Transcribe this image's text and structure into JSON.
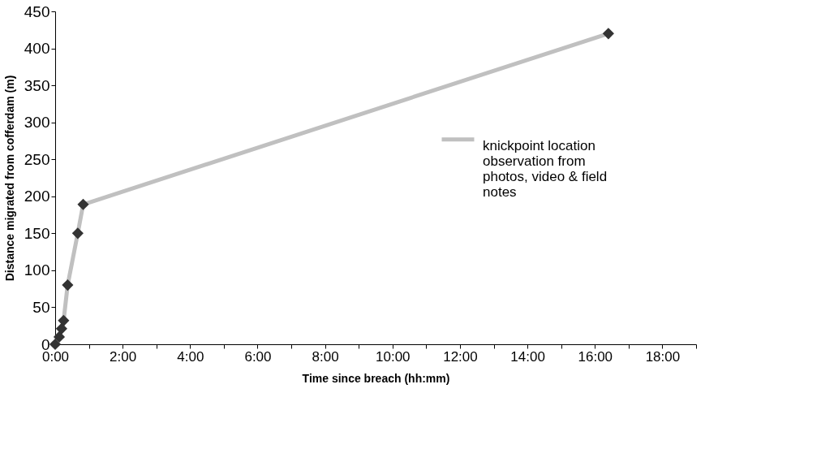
{
  "chart_data": {
    "type": "line",
    "xlabel": "Time since breach (hh:mm)",
    "ylabel": "Distance migrated from cofferdam (m)",
    "series": [
      {
        "name": "knickpoint location observation from photos, video & field notes",
        "color": "#c0c0c0",
        "x": [
          0,
          0.12,
          0.19,
          0.25,
          0.37,
          0.67,
          0.83,
          16.4
        ],
        "values": [
          0,
          10,
          21,
          32,
          80,
          150,
          189,
          420
        ]
      }
    ],
    "xlim": [
      0,
      19
    ],
    "xticks": [
      {
        "value": 0,
        "label": "0:00"
      },
      {
        "value": 1,
        "label": null
      },
      {
        "value": 2,
        "label": "2:00"
      },
      {
        "value": 3,
        "label": null
      },
      {
        "value": 4,
        "label": "4:00"
      },
      {
        "value": 5,
        "label": null
      },
      {
        "value": 6,
        "label": "6:00"
      },
      {
        "value": 7,
        "label": null
      },
      {
        "value": 8,
        "label": "8:00"
      },
      {
        "value": 9,
        "label": null
      },
      {
        "value": 10,
        "label": "10:00"
      },
      {
        "value": 11,
        "label": null
      },
      {
        "value": 12,
        "label": "12:00"
      },
      {
        "value": 13,
        "label": null
      },
      {
        "value": 14,
        "label": "14:00"
      },
      {
        "value": 15,
        "label": null
      },
      {
        "value": 16,
        "label": "16:00"
      },
      {
        "value": 17,
        "label": null
      },
      {
        "value": 18,
        "label": "18:00"
      },
      {
        "value": 19,
        "label": null
      }
    ],
    "ylim": [
      0,
      450
    ],
    "yticks": [
      0,
      50,
      100,
      150,
      200,
      250,
      300,
      350,
      400,
      450
    ],
    "grid": false,
    "legend": "right",
    "marker": "diamond",
    "line_style": "solid"
  }
}
